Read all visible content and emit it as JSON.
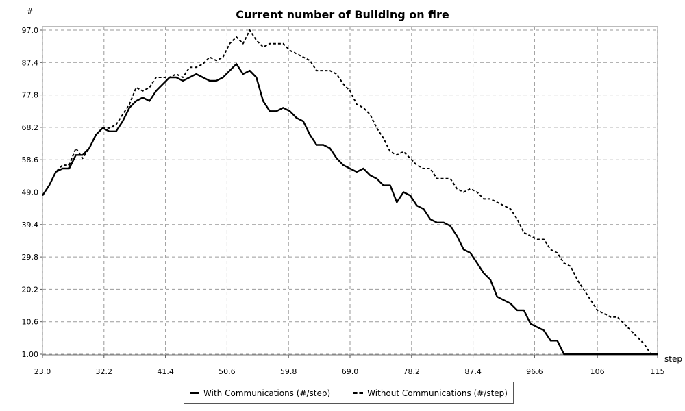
{
  "chart_data": {
    "type": "line",
    "title": "Current number of Building on fire",
    "xlabel": "step",
    "ylabel": "#",
    "xlim": [
      23.0,
      115
    ],
    "ylim": [
      1.0,
      97.0
    ],
    "x_ticks": [
      "23.0",
      "32.2",
      "41.4",
      "50.6",
      "59.8",
      "69.0",
      "78.2",
      "87.4",
      "96.6",
      "106",
      "115"
    ],
    "y_ticks": [
      "1.00",
      "10.6",
      "20.2",
      "29.8",
      "39.4",
      "49.0",
      "58.6",
      "68.2",
      "77.8",
      "87.4",
      "97.0"
    ],
    "grid": true,
    "legend_position": "bottom",
    "series": [
      {
        "name": "With Communications (#/step)",
        "style": "solid",
        "color": "#000000",
        "x": [
          23,
          24,
          25,
          26,
          27,
          28,
          29,
          30,
          31,
          32,
          33,
          34,
          35,
          36,
          37,
          38,
          39,
          40,
          41,
          42,
          43,
          44,
          45,
          46,
          47,
          48,
          49,
          50,
          51,
          52,
          53,
          54,
          55,
          56,
          57,
          58,
          59,
          60,
          61,
          62,
          63,
          64,
          65,
          66,
          67,
          68,
          69,
          70,
          71,
          72,
          73,
          74,
          75,
          76,
          77,
          78,
          79,
          80,
          81,
          82,
          83,
          84,
          85,
          86,
          87,
          88,
          89,
          90,
          91,
          92,
          93,
          94,
          95,
          96,
          97,
          98,
          99,
          100,
          101,
          102,
          103,
          104,
          105,
          106,
          107,
          108,
          109,
          110,
          111,
          112,
          113,
          114,
          115
        ],
        "y": [
          48,
          51,
          55,
          56,
          56,
          60,
          60,
          62,
          66,
          68,
          67,
          67,
          70,
          74,
          76,
          77,
          76,
          79,
          81,
          83,
          83,
          82,
          83,
          84,
          83,
          82,
          82,
          83,
          85,
          87,
          84,
          85,
          83,
          76,
          73,
          73,
          74,
          73,
          71,
          70,
          66,
          63,
          63,
          62,
          59,
          57,
          56,
          55,
          56,
          54,
          53,
          51,
          51,
          46,
          49,
          48,
          45,
          44,
          41,
          40,
          40,
          39,
          36,
          32,
          31,
          28,
          25,
          23,
          18,
          17,
          16,
          14,
          14,
          10,
          9,
          8,
          5,
          5,
          1,
          1,
          1,
          1,
          1,
          1,
          1,
          1,
          1,
          1,
          1,
          1,
          1,
          1,
          1
        ]
      },
      {
        "name": "Without Communications (#/step)",
        "style": "dashed",
        "color": "#000000",
        "x": [
          23,
          24,
          25,
          26,
          27,
          28,
          29,
          30,
          31,
          32,
          33,
          34,
          35,
          36,
          37,
          38,
          39,
          40,
          41,
          42,
          43,
          44,
          45,
          46,
          47,
          48,
          49,
          50,
          51,
          52,
          53,
          54,
          55,
          56,
          57,
          58,
          59,
          60,
          61,
          62,
          63,
          64,
          65,
          66,
          67,
          68,
          69,
          70,
          71,
          72,
          73,
          74,
          75,
          76,
          77,
          78,
          79,
          80,
          81,
          82,
          83,
          84,
          85,
          86,
          87,
          88,
          89,
          90,
          91,
          92,
          93,
          94,
          95,
          96,
          97,
          98,
          99,
          100,
          101,
          102,
          103,
          104,
          105,
          106,
          107,
          108,
          109,
          110,
          111,
          112,
          113,
          114,
          115
        ],
        "y": [
          48,
          51,
          55,
          57,
          57,
          62,
          59,
          62,
          66,
          68,
          68,
          69,
          72,
          75,
          80,
          79,
          80,
          83,
          83,
          83,
          84,
          83,
          86,
          86,
          87,
          89,
          88,
          89,
          93,
          95,
          93,
          97,
          94,
          92,
          93,
          93,
          93,
          91,
          90,
          89,
          88,
          85,
          85,
          85,
          84,
          81,
          79,
          75,
          74,
          72,
          68,
          65,
          61,
          60,
          61,
          59,
          57,
          56,
          56,
          53,
          53,
          53,
          50,
          49,
          50,
          49,
          47,
          47,
          46,
          45,
          44,
          41,
          37,
          36,
          35,
          35,
          32,
          31,
          28,
          27,
          23,
          20,
          17,
          14,
          13,
          12,
          12,
          10,
          8,
          6,
          4,
          1,
          1
        ]
      }
    ]
  }
}
